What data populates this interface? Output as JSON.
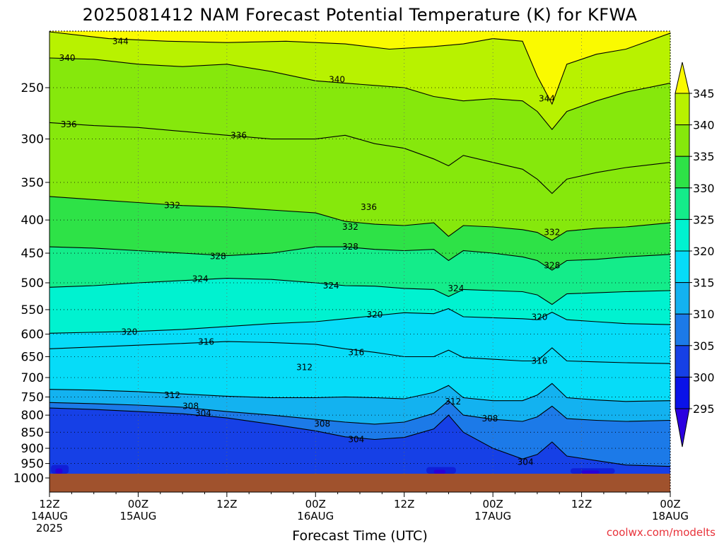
{
  "chart_data": {
    "type": "heatmap",
    "subtype": "time-height contour",
    "title": "2025081412 NAM Forecast Potential Temperature (K) for KFWA",
    "xlabel": "Forecast Time (UTC)",
    "credit": "coolwx.com/modelts",
    "x_ticks": [
      {
        "hour": 0,
        "line1": "12Z",
        "line2": "14AUG",
        "line3": "2025"
      },
      {
        "hour": 12,
        "line1": "00Z",
        "line2": "15AUG",
        "line3": ""
      },
      {
        "hour": 24,
        "line1": "12Z",
        "line2": "",
        "line3": ""
      },
      {
        "hour": 36,
        "line1": "00Z",
        "line2": "16AUG",
        "line3": ""
      },
      {
        "hour": 48,
        "line1": "12Z",
        "line2": "",
        "line3": ""
      },
      {
        "hour": 60,
        "line1": "00Z",
        "line2": "17AUG",
        "line3": ""
      },
      {
        "hour": 72,
        "line1": "12Z",
        "line2": "",
        "line3": ""
      },
      {
        "hour": 84,
        "line1": "00Z",
        "line2": "18AUG",
        "line3": ""
      }
    ],
    "x_range_hours": [
      0,
      84
    ],
    "y_axis": {
      "ticks": [
        250,
        300,
        350,
        400,
        450,
        500,
        550,
        600,
        650,
        700,
        750,
        800,
        850,
        900,
        950,
        1000
      ],
      "range_hpa": [
        200,
        1000
      ],
      "scale": "log-pressure",
      "inverted": true
    },
    "ground_level_hpa": 985,
    "grid": true,
    "colorbar": {
      "ticks": [
        345,
        340,
        335,
        330,
        325,
        320,
        315,
        310,
        305,
        300,
        295
      ],
      "bands": [
        {
          "from": 290,
          "to": 295,
          "color": "#2b00e0"
        },
        {
          "from": 295,
          "to": 300,
          "color": "#0a12e8"
        },
        {
          "from": 300,
          "to": 305,
          "color": "#1640e6"
        },
        {
          "from": 305,
          "to": 310,
          "color": "#1c7ae8"
        },
        {
          "from": 310,
          "to": 315,
          "color": "#13b2f0"
        },
        {
          "from": 315,
          "to": 320,
          "color": "#06dcf8"
        },
        {
          "from": 320,
          "to": 325,
          "color": "#00f2d0"
        },
        {
          "from": 325,
          "to": 330,
          "color": "#14ec8a"
        },
        {
          "from": 330,
          "to": 335,
          "color": "#2ee247"
        },
        {
          "from": 335,
          "to": 340,
          "color": "#86e80c"
        },
        {
          "from": 340,
          "to": 345,
          "color": "#b8f200"
        },
        {
          "from": 345,
          "to": 350,
          "color": "#fafa00"
        }
      ]
    },
    "contour_labels": [
      {
        "value": "344",
        "hour": 9.6,
        "p": 212
      },
      {
        "value": "340",
        "hour": 2.4,
        "p": 225
      },
      {
        "value": "340",
        "hour": 38.9,
        "p": 243
      },
      {
        "value": "344",
        "hour": 67.3,
        "p": 260
      },
      {
        "value": "336",
        "hour": 2.6,
        "p": 285
      },
      {
        "value": "336",
        "hour": 25.6,
        "p": 296
      },
      {
        "value": "336",
        "hour": 43.2,
        "p": 382
      },
      {
        "value": "332",
        "hour": 16.6,
        "p": 380
      },
      {
        "value": "332",
        "hour": 40.7,
        "p": 410
      },
      {
        "value": "332",
        "hour": 68.0,
        "p": 418
      },
      {
        "value": "328",
        "hour": 22.8,
        "p": 455
      },
      {
        "value": "328",
        "hour": 40.7,
        "p": 440
      },
      {
        "value": "328",
        "hour": 68.0,
        "p": 470
      },
      {
        "value": "324",
        "hour": 20.4,
        "p": 493
      },
      {
        "value": "324",
        "hour": 38.1,
        "p": 505
      },
      {
        "value": "324",
        "hour": 55.0,
        "p": 510
      },
      {
        "value": "320",
        "hour": 10.8,
        "p": 595
      },
      {
        "value": "320",
        "hour": 44.0,
        "p": 560
      },
      {
        "value": "320",
        "hour": 66.3,
        "p": 565
      },
      {
        "value": "316",
        "hour": 21.2,
        "p": 617
      },
      {
        "value": "316",
        "hour": 41.5,
        "p": 640
      },
      {
        "value": "316",
        "hour": 66.3,
        "p": 660
      },
      {
        "value": "312",
        "hour": 34.5,
        "p": 675
      },
      {
        "value": "312",
        "hour": 16.6,
        "p": 745
      },
      {
        "value": "312",
        "hour": 54.6,
        "p": 762
      },
      {
        "value": "308",
        "hour": 19.1,
        "p": 775
      },
      {
        "value": "308",
        "hour": 36.9,
        "p": 825
      },
      {
        "value": "308",
        "hour": 59.6,
        "p": 810
      },
      {
        "value": "304",
        "hour": 20.8,
        "p": 795
      },
      {
        "value": "304",
        "hour": 41.5,
        "p": 872
      },
      {
        "value": "304",
        "hour": 64.4,
        "p": 945
      }
    ],
    "contour_lines": [
      {
        "value": 344,
        "pts": [
          [
            0,
            205
          ],
          [
            8,
            210
          ],
          [
            16,
            212
          ],
          [
            24,
            213
          ],
          [
            32,
            212
          ],
          [
            40,
            214
          ],
          [
            46,
            218
          ],
          [
            52,
            216
          ],
          [
            56,
            214
          ],
          [
            60,
            210
          ],
          [
            64,
            212
          ],
          [
            66,
            240
          ],
          [
            68,
            265
          ],
          [
            70,
            230
          ],
          [
            74,
            222
          ],
          [
            78,
            218
          ],
          [
            84,
            206
          ]
        ]
      },
      {
        "value": 340,
        "pts": [
          [
            0,
            225
          ],
          [
            6,
            226
          ],
          [
            12,
            230
          ],
          [
            18,
            232
          ],
          [
            24,
            230
          ],
          [
            30,
            236
          ],
          [
            36,
            244
          ],
          [
            40,
            246
          ],
          [
            44,
            248
          ],
          [
            48,
            250
          ],
          [
            52,
            258
          ],
          [
            56,
            262
          ],
          [
            60,
            260
          ],
          [
            64,
            262
          ],
          [
            66,
            272
          ],
          [
            68,
            290
          ],
          [
            70,
            272
          ],
          [
            74,
            262
          ],
          [
            78,
            254
          ],
          [
            84,
            246
          ]
        ]
      },
      {
        "value": 336,
        "pts": [
          [
            0,
            283
          ],
          [
            6,
            286
          ],
          [
            12,
            288
          ],
          [
            18,
            292
          ],
          [
            24,
            296
          ],
          [
            30,
            300
          ],
          [
            36,
            300
          ],
          [
            40,
            296
          ],
          [
            44,
            305
          ],
          [
            48,
            310
          ],
          [
            52,
            322
          ],
          [
            54,
            330
          ],
          [
            56,
            318
          ],
          [
            60,
            326
          ],
          [
            64,
            334
          ],
          [
            66,
            346
          ],
          [
            68,
            364
          ],
          [
            70,
            346
          ],
          [
            74,
            338
          ],
          [
            78,
            332
          ],
          [
            84,
            326
          ]
        ]
      },
      {
        "value": 332,
        "pts": [
          [
            0,
            368
          ],
          [
            6,
            372
          ],
          [
            12,
            376
          ],
          [
            18,
            380
          ],
          [
            24,
            382
          ],
          [
            30,
            386
          ],
          [
            36,
            390
          ],
          [
            40,
            402
          ],
          [
            44,
            406
          ],
          [
            48,
            408
          ],
          [
            52,
            404
          ],
          [
            54,
            424
          ],
          [
            56,
            408
          ],
          [
            60,
            410
          ],
          [
            64,
            414
          ],
          [
            66,
            418
          ],
          [
            68,
            430
          ],
          [
            70,
            416
          ],
          [
            74,
            412
          ],
          [
            78,
            410
          ],
          [
            84,
            404
          ]
        ]
      },
      {
        "value": 328,
        "pts": [
          [
            0,
            440
          ],
          [
            6,
            442
          ],
          [
            12,
            446
          ],
          [
            18,
            450
          ],
          [
            24,
            454
          ],
          [
            30,
            450
          ],
          [
            36,
            440
          ],
          [
            40,
            440
          ],
          [
            44,
            444
          ],
          [
            48,
            446
          ],
          [
            52,
            444
          ],
          [
            54,
            462
          ],
          [
            56,
            446
          ],
          [
            60,
            450
          ],
          [
            64,
            456
          ],
          [
            66,
            462
          ],
          [
            68,
            478
          ],
          [
            70,
            462
          ],
          [
            74,
            460
          ],
          [
            78,
            456
          ],
          [
            84,
            452
          ]
        ]
      },
      {
        "value": 324,
        "pts": [
          [
            0,
            508
          ],
          [
            6,
            505
          ],
          [
            12,
            500
          ],
          [
            18,
            496
          ],
          [
            24,
            492
          ],
          [
            30,
            494
          ],
          [
            36,
            500
          ],
          [
            40,
            505
          ],
          [
            44,
            506
          ],
          [
            48,
            510
          ],
          [
            52,
            512
          ],
          [
            54,
            525
          ],
          [
            56,
            512
          ],
          [
            60,
            514
          ],
          [
            64,
            516
          ],
          [
            66,
            522
          ],
          [
            68,
            540
          ],
          [
            70,
            520
          ],
          [
            74,
            518
          ],
          [
            78,
            516
          ],
          [
            84,
            514
          ]
        ]
      },
      {
        "value": 320,
        "pts": [
          [
            0,
            598
          ],
          [
            6,
            596
          ],
          [
            12,
            594
          ],
          [
            18,
            590
          ],
          [
            24,
            584
          ],
          [
            30,
            578
          ],
          [
            36,
            574
          ],
          [
            40,
            568
          ],
          [
            44,
            562
          ],
          [
            48,
            556
          ],
          [
            52,
            558
          ],
          [
            54,
            548
          ],
          [
            56,
            564
          ],
          [
            60,
            566
          ],
          [
            64,
            568
          ],
          [
            66,
            570
          ],
          [
            68,
            555
          ],
          [
            70,
            570
          ],
          [
            74,
            574
          ],
          [
            78,
            578
          ],
          [
            84,
            580
          ]
        ]
      },
      {
        "value": 316,
        "pts": [
          [
            0,
            632
          ],
          [
            6,
            628
          ],
          [
            12,
            624
          ],
          [
            18,
            620
          ],
          [
            24,
            616
          ],
          [
            30,
            618
          ],
          [
            36,
            622
          ],
          [
            40,
            632
          ],
          [
            44,
            640
          ],
          [
            48,
            650
          ],
          [
            52,
            650
          ],
          [
            54,
            635
          ],
          [
            56,
            652
          ],
          [
            60,
            656
          ],
          [
            64,
            660
          ],
          [
            66,
            660
          ],
          [
            68,
            630
          ],
          [
            70,
            660
          ],
          [
            74,
            662
          ],
          [
            78,
            664
          ],
          [
            84,
            666
          ]
        ]
      },
      {
        "value": 312,
        "pts": [
          [
            0,
            730
          ],
          [
            6,
            732
          ],
          [
            12,
            736
          ],
          [
            18,
            742
          ],
          [
            24,
            748
          ],
          [
            30,
            752
          ],
          [
            36,
            752
          ],
          [
            40,
            750
          ],
          [
            44,
            752
          ],
          [
            48,
            755
          ],
          [
            52,
            738
          ],
          [
            54,
            720
          ],
          [
            56,
            752
          ],
          [
            60,
            760
          ],
          [
            64,
            760
          ],
          [
            66,
            745
          ],
          [
            68,
            715
          ],
          [
            70,
            752
          ],
          [
            74,
            758
          ],
          [
            78,
            762
          ],
          [
            84,
            760
          ]
        ]
      },
      {
        "value": 308,
        "pts": [
          [
            0,
            765
          ],
          [
            6,
            768
          ],
          [
            12,
            772
          ],
          [
            18,
            778
          ],
          [
            24,
            790
          ],
          [
            30,
            800
          ],
          [
            36,
            812
          ],
          [
            40,
            820
          ],
          [
            44,
            826
          ],
          [
            48,
            820
          ],
          [
            52,
            795
          ],
          [
            54,
            760
          ],
          [
            56,
            800
          ],
          [
            60,
            812
          ],
          [
            64,
            818
          ],
          [
            66,
            805
          ],
          [
            68,
            775
          ],
          [
            70,
            810
          ],
          [
            74,
            815
          ],
          [
            78,
            818
          ],
          [
            84,
            815
          ]
        ]
      },
      {
        "value": 304,
        "pts": [
          [
            0,
            780
          ],
          [
            6,
            784
          ],
          [
            12,
            790
          ],
          [
            18,
            796
          ],
          [
            24,
            808
          ],
          [
            30,
            826
          ],
          [
            36,
            846
          ],
          [
            40,
            864
          ],
          [
            44,
            872
          ],
          [
            48,
            866
          ],
          [
            52,
            840
          ],
          [
            54,
            800
          ],
          [
            56,
            850
          ],
          [
            60,
            900
          ],
          [
            64,
            935
          ],
          [
            66,
            920
          ],
          [
            68,
            880
          ],
          [
            70,
            925
          ],
          [
            74,
            940
          ],
          [
            78,
            955
          ],
          [
            84,
            960
          ]
        ]
      }
    ]
  }
}
